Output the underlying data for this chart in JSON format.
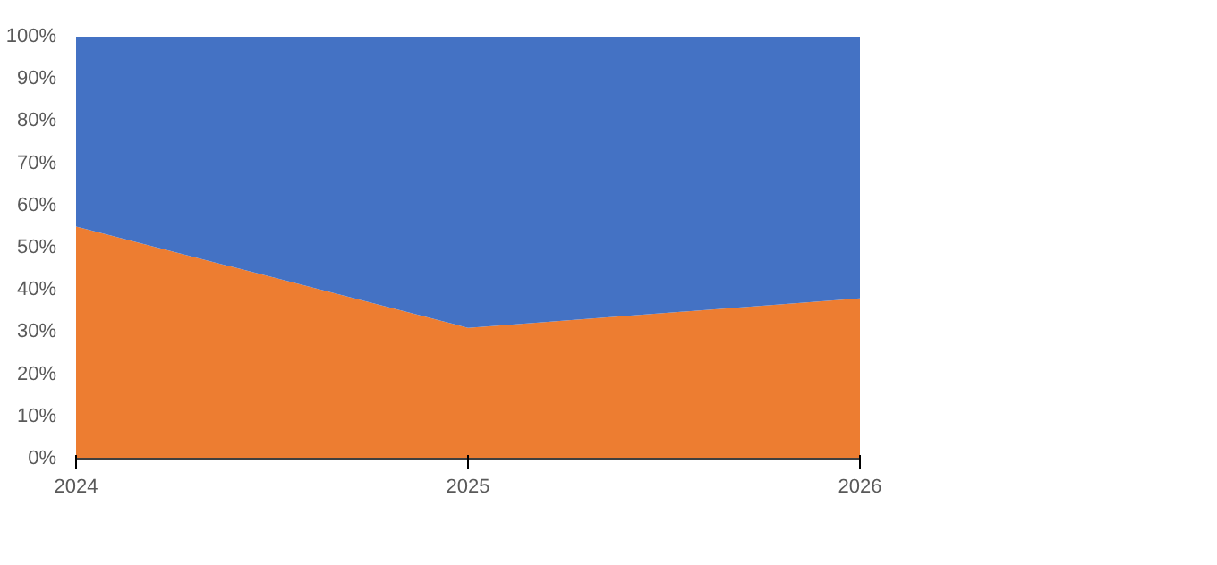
{
  "chart_data": {
    "type": "area",
    "stacked": true,
    "x": [
      2024,
      2025,
      2026
    ],
    "xlim": [
      2024,
      2026
    ],
    "xticks": [
      2024,
      2025,
      2026
    ],
    "ylim": [
      0,
      100
    ],
    "yticks": [
      {
        "value": 0,
        "label": "0%"
      },
      {
        "value": 10,
        "label": "10%"
      },
      {
        "value": 20,
        "label": "20%"
      },
      {
        "value": 30,
        "label": "30%"
      },
      {
        "value": 40,
        "label": "40%"
      },
      {
        "value": 50,
        "label": "50%"
      },
      {
        "value": 60,
        "label": "60%"
      },
      {
        "value": 70,
        "label": "70%"
      },
      {
        "value": 80,
        "label": "80%"
      },
      {
        "value": 90,
        "label": "90%"
      },
      {
        "value": 100,
        "label": "100%"
      }
    ],
    "series": [
      {
        "color": "#ed7d31",
        "values": [
          55,
          31,
          38
        ]
      },
      {
        "color": "#4472c4",
        "values": [
          45,
          69,
          62
        ]
      }
    ]
  }
}
